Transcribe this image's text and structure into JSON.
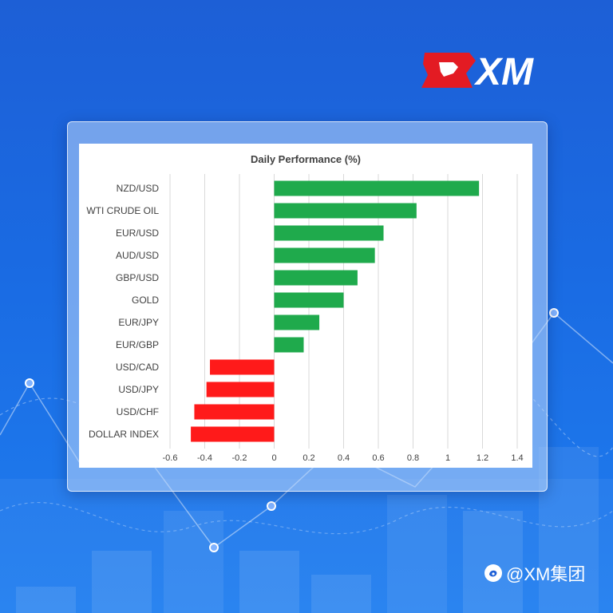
{
  "brand": {
    "logo_text": "XM",
    "accent_color": "#e31b23"
  },
  "watermark": {
    "text": "@XM集团",
    "icon": "weibo-like-icon"
  },
  "colors": {
    "positive": "#1faa4c",
    "negative": "#ff1a1a",
    "background": "#1d5fd6"
  },
  "chart_data": {
    "type": "bar",
    "orientation": "horizontal",
    "title": "Daily Performance (%)",
    "categories": [
      "NZD/USD",
      "WTI CRUDE OIL",
      "EUR/USD",
      "AUD/USD",
      "GBP/USD",
      "GOLD",
      "EUR/JPY",
      "EUR/GBP",
      "USD/CAD",
      "USD/JPY",
      "USD/CHF",
      "DOLLAR INDEX"
    ],
    "values": [
      1.18,
      0.82,
      0.63,
      0.58,
      0.48,
      0.4,
      0.26,
      0.17,
      -0.37,
      -0.39,
      -0.46,
      -0.48
    ],
    "xlim": [
      -0.6,
      1.4
    ],
    "xticks": [
      "-0.6",
      "-0.4",
      "-0.2",
      "0",
      "0.2",
      "0.4",
      "0.6",
      "0.8",
      "1",
      "1.2",
      "1.4"
    ],
    "grid": "vertical",
    "legend": "none"
  }
}
